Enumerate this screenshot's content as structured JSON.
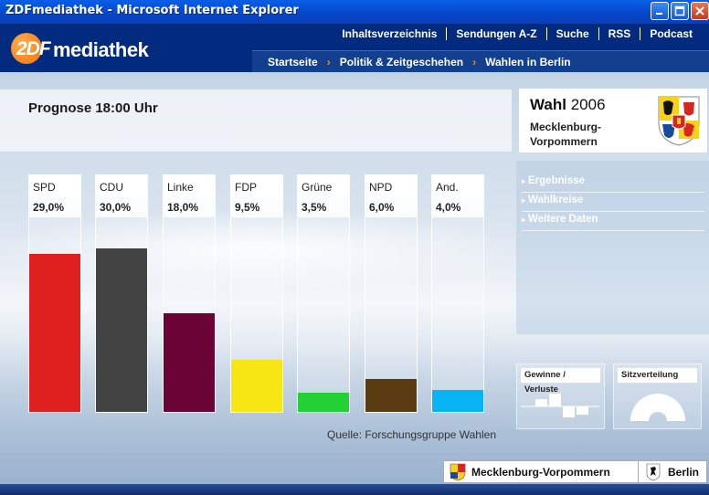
{
  "window": {
    "title": "ZDFmediathek - Microsoft Internet Explorer"
  },
  "header": {
    "logo_zdf": "2DF",
    "logo_text": "mediathek",
    "topnav": [
      "Inhaltsverzeichnis",
      "Sendungen A-Z",
      "Suche",
      "RSS",
      "Podcast"
    ],
    "breadcrumb": [
      "Startseite",
      "Politik & Zeitgeschehen",
      "Wahlen in Berlin"
    ]
  },
  "main": {
    "title": "Prognose 18:00 Uhr",
    "source": "Quelle: Forschungsgruppe Wahlen"
  },
  "chart_data": {
    "type": "bar",
    "categories": [
      "SPD",
      "CDU",
      "Linke",
      "FDP",
      "Grüne",
      "NPD",
      "And."
    ],
    "values": [
      29.0,
      30.0,
      18.0,
      9.5,
      3.5,
      6.0,
      4.0
    ],
    "value_labels": [
      "29,0%",
      "30,0%",
      "18,0%",
      "9,5%",
      "3,5%",
      "6,0%",
      "4,0%"
    ],
    "colors": [
      "#e01f1f",
      "#434343",
      "#6b0337",
      "#f8e614",
      "#23d135",
      "#5a3a10",
      "#09b4f5"
    ],
    "ylim": [
      0,
      36
    ]
  },
  "sidebar": {
    "wahl_label": "Wahl",
    "wahl_year": "2006",
    "state_line1": "Mecklenburg-",
    "state_line2": "Vorpommern",
    "links": [
      "Ergebnisse",
      "Wahlkreise",
      "Weitere Daten"
    ],
    "tile_gains": "Gewinne / Verluste",
    "tile_seats": "Sitzverteilung"
  },
  "footer": {
    "state_button": "Mecklenburg-Vorpommern",
    "city_button": "Berlin"
  }
}
